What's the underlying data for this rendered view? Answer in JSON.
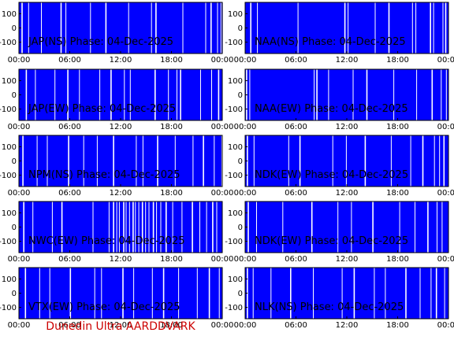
{
  "footer": "Dunedin Ultra AARDDVARK",
  "colors": {
    "background": "#ffffff",
    "plot": "#0000ff",
    "gaps": "#ffffff",
    "axis": "#000000",
    "footer": "#cc0000"
  },
  "chart_data": [
    {
      "type": "area",
      "title": "JAP(NS) Phase: 04-Dec-2025",
      "x_ticks": [
        "00:00",
        "06:00",
        "12:00",
        "18:00",
        "00:00"
      ],
      "xlim": [
        0,
        24
      ],
      "y_ticks": [
        "100",
        "0",
        "-100"
      ],
      "ylim": [
        -180,
        180
      ],
      "gaps_hours": [
        0.3,
        1.1,
        2.6,
        4.9,
        5.5,
        8.4,
        10.2,
        12.9,
        15.6,
        16.1,
        19.3,
        22.0,
        22.6,
        23.4,
        23.8
      ]
    },
    {
      "type": "area",
      "title": "NAA(NS) Phase: 04-Dec-2025",
      "x_ticks": [
        "00:00",
        "06:00",
        "12:00",
        "18:00",
        "00:00"
      ],
      "xlim": [
        0,
        24
      ],
      "y_ticks": [
        "100",
        "0",
        "-100"
      ],
      "ylim": [
        -180,
        180
      ],
      "gaps_hours": [
        0.6,
        1.4,
        6.2,
        11.7,
        12.1,
        15.3,
        16.9,
        19.7,
        20.1,
        21.8,
        22.2,
        23.3,
        23.6
      ]
    },
    {
      "type": "area",
      "title": "JAP(EW) Phase: 04-Dec-2025",
      "x_ticks": [
        "00:00",
        "06:00",
        "12:00",
        "18:00",
        "00:00"
      ],
      "xlim": [
        0,
        24
      ],
      "y_ticks": [
        "100",
        "0",
        "-100"
      ],
      "ylim": [
        -180,
        180
      ],
      "gaps_hours": [
        0.8,
        1.9,
        4.2,
        5.7,
        7.1,
        9.5,
        10.8,
        12.4,
        13.1,
        16.0,
        17.6,
        18.6,
        19.0,
        21.4,
        22.7,
        23.5
      ]
    },
    {
      "type": "area",
      "title": "NAA(EW) Phase: 04-Dec-2025",
      "x_ticks": [
        "00:00",
        "06:00",
        "12:00",
        "18:00",
        "00:00"
      ],
      "xlim": [
        0,
        24
      ],
      "y_ticks": [
        "100",
        "0",
        "-100"
      ],
      "ylim": [
        -180,
        180
      ],
      "gaps_hours": [
        0.1,
        0.5,
        8.1,
        8.4,
        9.8,
        12.7,
        14.3,
        17.5,
        20.2,
        22.0,
        23.1,
        23.7
      ]
    },
    {
      "type": "area",
      "title": "NPM(NS) Phase: 04-Dec-2025",
      "x_ticks": [
        "00:00",
        "06:00",
        "12:00",
        "18:00",
        "00:00"
      ],
      "xlim": [
        0,
        24
      ],
      "y_ticks": [
        "100",
        "0",
        "-100"
      ],
      "ylim": [
        -180,
        180
      ],
      "gaps_hours": [
        0.4,
        2.1,
        3.3,
        5.8,
        7.6,
        9.2,
        11.1,
        13.8,
        14.6,
        16.3,
        18.4,
        20.5,
        21.7,
        23.0,
        23.9
      ]
    },
    {
      "type": "area",
      "title": "NDK(EW) Phase: 04-Dec-2025",
      "x_ticks": [
        "00:00",
        "06:00",
        "12:00",
        "18:00",
        "00:00"
      ],
      "xlim": [
        0,
        24
      ],
      "y_ticks": [
        "100",
        "0",
        "-100"
      ],
      "ylim": [
        -180,
        180
      ],
      "gaps_hours": [
        0.2,
        1.0,
        5.1,
        6.4,
        10.3,
        11.9,
        14.1,
        17.2,
        19.5,
        20.9,
        22.3,
        22.9,
        23.4
      ]
    },
    {
      "type": "area",
      "title": "NWC(EW) Phase: 04-Dec-2025",
      "x_ticks": [
        "00:00",
        "06:00",
        "12:00",
        "18:00",
        "00:00"
      ],
      "xlim": [
        0,
        24
      ],
      "y_ticks": [
        "100",
        "0",
        "-100"
      ],
      "ylim": [
        -180,
        180
      ],
      "gaps_hours": [
        0.5,
        1.6,
        3.9,
        5.0,
        8.7,
        10.6,
        11.1,
        11.5,
        11.8,
        12.3,
        12.6,
        13.0,
        13.4,
        13.7,
        14.1,
        14.5,
        14.9,
        15.3,
        15.8,
        16.2,
        16.7,
        17.3,
        18.1,
        19.2,
        20.4,
        21.3,
        22.1,
        22.8,
        23.3
      ]
    },
    {
      "type": "area",
      "title": "NDK(EW) Phase: 04-Dec-2025",
      "x_ticks": [
        "00:00",
        "06:00",
        "12:00",
        "18:00",
        "00:00"
      ],
      "xlim": [
        0,
        24
      ],
      "y_ticks": [
        "100",
        "0",
        "-100"
      ],
      "ylim": [
        -180,
        180
      ],
      "gaps_hours": [
        0.3,
        1.3,
        4.4,
        7.8,
        10.9,
        12.5,
        15.0,
        18.2,
        20.0,
        21.5,
        22.6,
        23.2
      ]
    },
    {
      "type": "area",
      "title": "VTX(EW) Phase: 04-Dec-2025",
      "x_ticks": [
        "00:00",
        "06:00",
        "12:00",
        "18:00",
        "00:00"
      ],
      "xlim": [
        0,
        24
      ],
      "y_ticks": [
        "100",
        "0",
        "-100"
      ],
      "ylim": [
        -180,
        180
      ],
      "gaps_hours": [
        0.7,
        2.4,
        3.6,
        6.0,
        8.9,
        9.7,
        12.2,
        13.5,
        15.7,
        17.0,
        18.8,
        21.0,
        22.4,
        23.6
      ]
    },
    {
      "type": "area",
      "title": "NLK(NS) Phase: 04-Dec-2025",
      "x_ticks": [
        "00:00",
        "06:00",
        "12:00",
        "18:00",
        "00:00"
      ],
      "xlim": [
        0,
        24
      ],
      "y_ticks": [
        "100",
        "0",
        "-100"
      ],
      "ylim": [
        -180,
        180
      ],
      "gaps_hours": [
        0.2,
        0.9,
        3.0,
        5.3,
        8.0,
        11.4,
        12.8,
        15.2,
        16.5,
        18.9,
        20.6,
        21.9,
        22.5,
        23.5
      ]
    }
  ]
}
